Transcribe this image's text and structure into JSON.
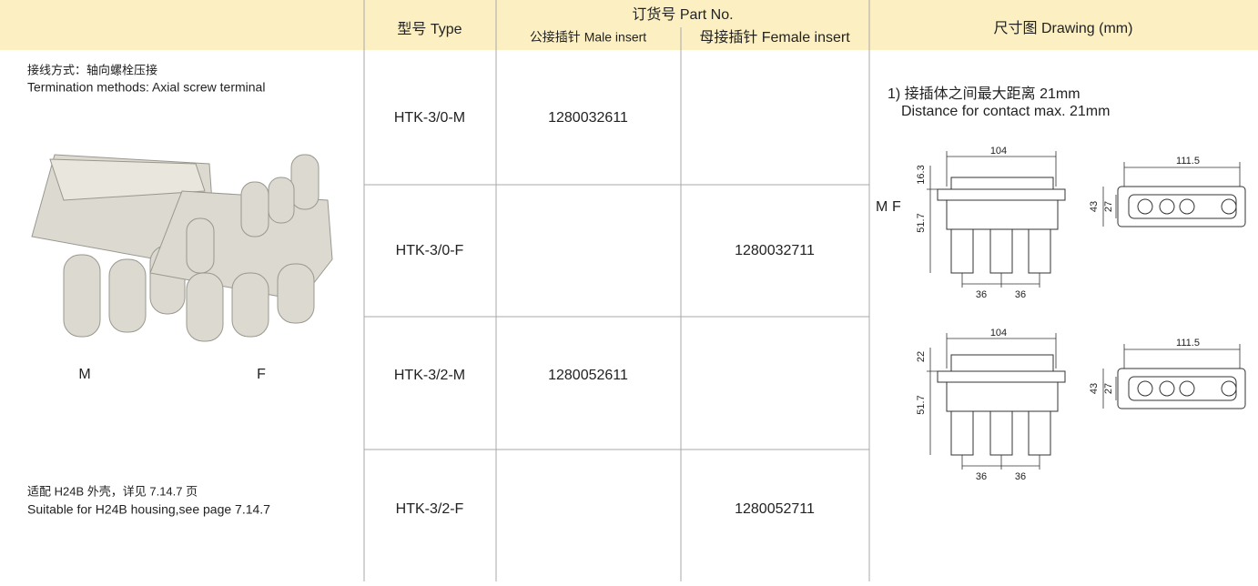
{
  "header": {
    "type": "型号 Type",
    "order_no": "订货号 Part No.",
    "male": "公接插针 Male insert",
    "female": "母接插针 Female insert",
    "drawing": "尺寸图 Drawing (mm)"
  },
  "left": {
    "termination_cn": "接线方式：轴向螺栓压接",
    "termination_en": "Termination methods: Axial screw terminal",
    "photo_labels": [
      "M",
      "F"
    ],
    "housing_cn": "适配 H24B 外壳，详见 7.14.7 页",
    "housing_en": "Suitable for H24B housing,see page 7.14.7"
  },
  "table": {
    "rows": [
      {
        "type": "HTK-3/0-M",
        "male": "1280032611"
      },
      {
        "type": "HTK-3/0-F",
        "female": "1280032711"
      },
      {
        "type": "HTK-3/2-M",
        "male": "1280052611"
      },
      {
        "type": "HTK-3/2-F",
        "female": "1280052711"
      }
    ]
  },
  "drawing": {
    "note_cn": "1) 接插体之间最大距离 21mm",
    "note_en": "Distance for contact max. 21mm",
    "views": [
      {
        "label": "M",
        "top_height": "16.3",
        "width": "104",
        "body_height": "51.7",
        "pitch": [
          "36",
          "36"
        ],
        "face_width": "111.5",
        "face_height": "43",
        "face_inner": "27"
      },
      {
        "label": "F",
        "top_height": "22",
        "width": "104",
        "body_height": "51.7",
        "pitch": [
          "36",
          "36"
        ],
        "face_width": "111.5",
        "face_height": "43",
        "face_inner": "27"
      }
    ]
  }
}
